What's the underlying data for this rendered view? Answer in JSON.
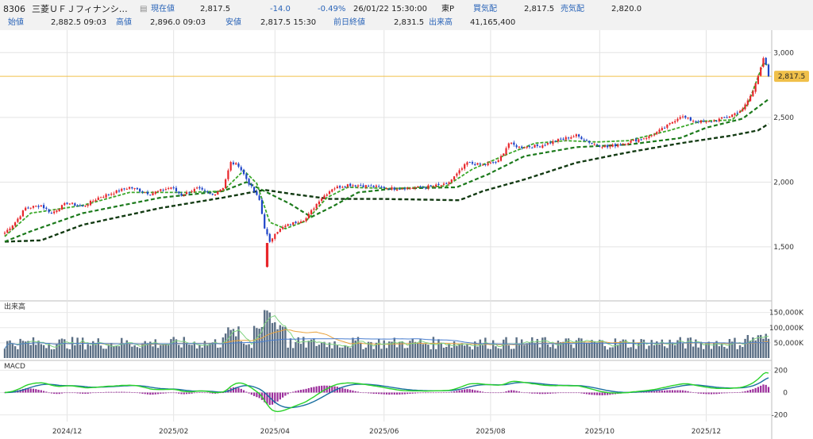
{
  "header": {
    "code": "8306",
    "name": "三菱ＵＦＪフィナンシ…",
    "current_label": "現在値",
    "current_value": "2,817.5",
    "change": "-14.0",
    "change_pct": "-0.49%",
    "datetime": "26/01/22  15:30:00",
    "market": "東P",
    "bid_label": "買気配",
    "bid_value": "2,817.5",
    "ask_label": "売気配",
    "ask_value": "2,820.0",
    "open_label": "始値",
    "open_value": "2,882.5  09:03",
    "high_label": "高値",
    "high_value": "2,896.0  09:03",
    "low_label": "安値",
    "low_value": "2,817.5  15:30",
    "prev_close_label": "前日終値",
    "prev_close_value": "2,831.5",
    "volume_label": "出来高",
    "volume_value": "41,165,400"
  },
  "colors": {
    "up": "#e8262b",
    "down": "#1f45c8",
    "ma_short": "#3aa829",
    "ma_mid": "#1c7a1c",
    "ma_long": "#123a12",
    "volume": "#5a6e84",
    "macd": "#2ad32a",
    "signal": "#1a6fa0",
    "histogram": "#9b2d9b",
    "price_marker": "#f0c04a"
  },
  "chart_data": {
    "type": "candlestick",
    "price_axis": {
      "ticks": [
        "3,000",
        "2,500",
        "2,000",
        "1,500"
      ],
      "ylim": [
        1150,
        3100
      ]
    },
    "last_price_label": "2,817.5",
    "x_axis": {
      "ticks": [
        "2024/12",
        "2025/02",
        "2025/04",
        "2025/06",
        "2025/08",
        "2025/10",
        "2025/12"
      ]
    },
    "price_keyframes": [
      {
        "t": 0,
        "v": 1610
      },
      {
        "t": 4,
        "v": 1690
      },
      {
        "t": 8,
        "v": 1800
      },
      {
        "t": 14,
        "v": 1820
      },
      {
        "t": 18,
        "v": 1760
      },
      {
        "t": 24,
        "v": 1840
      },
      {
        "t": 30,
        "v": 1810
      },
      {
        "t": 36,
        "v": 1880
      },
      {
        "t": 48,
        "v": 1960
      },
      {
        "t": 56,
        "v": 1910
      },
      {
        "t": 64,
        "v": 1960
      },
      {
        "t": 68,
        "v": 1900
      },
      {
        "t": 74,
        "v": 1950
      },
      {
        "t": 80,
        "v": 1900
      },
      {
        "t": 84,
        "v": 1960
      },
      {
        "t": 87,
        "v": 2150
      },
      {
        "t": 90,
        "v": 2130
      },
      {
        "t": 94,
        "v": 1990
      },
      {
        "t": 98,
        "v": 1860
      },
      {
        "t": 100,
        "v": 1650
      },
      {
        "t": 102,
        "v": 1530
      },
      {
        "t": 104,
        "v": 1610
      },
      {
        "t": 108,
        "v": 1660
      },
      {
        "t": 116,
        "v": 1720
      },
      {
        "t": 121,
        "v": 1860
      },
      {
        "t": 126,
        "v": 1950
      },
      {
        "t": 132,
        "v": 1980
      },
      {
        "t": 140,
        "v": 1970
      },
      {
        "t": 150,
        "v": 1950
      },
      {
        "t": 160,
        "v": 1960
      },
      {
        "t": 170,
        "v": 1980
      },
      {
        "t": 174,
        "v": 2060
      },
      {
        "t": 178,
        "v": 2150
      },
      {
        "t": 184,
        "v": 2130
      },
      {
        "t": 190,
        "v": 2160
      },
      {
        "t": 194,
        "v": 2300
      },
      {
        "t": 198,
        "v": 2270
      },
      {
        "t": 206,
        "v": 2280
      },
      {
        "t": 214,
        "v": 2330
      },
      {
        "t": 220,
        "v": 2360
      },
      {
        "t": 226,
        "v": 2300
      },
      {
        "t": 232,
        "v": 2270
      },
      {
        "t": 240,
        "v": 2310
      },
      {
        "t": 248,
        "v": 2350
      },
      {
        "t": 254,
        "v": 2420
      },
      {
        "t": 260,
        "v": 2510
      },
      {
        "t": 264,
        "v": 2480
      },
      {
        "t": 270,
        "v": 2460
      },
      {
        "t": 278,
        "v": 2500
      },
      {
        "t": 284,
        "v": 2560
      },
      {
        "t": 288,
        "v": 2700
      },
      {
        "t": 292,
        "v": 2960
      },
      {
        "t": 294,
        "v": 2840
      }
    ],
    "ma_short_keyframes": [
      {
        "t": 0,
        "v": 1580
      },
      {
        "t": 10,
        "v": 1760
      },
      {
        "t": 30,
        "v": 1820
      },
      {
        "t": 48,
        "v": 1920
      },
      {
        "t": 70,
        "v": 1920
      },
      {
        "t": 84,
        "v": 1930
      },
      {
        "t": 92,
        "v": 2090
      },
      {
        "t": 97,
        "v": 1990
      },
      {
        "t": 102,
        "v": 1690
      },
      {
        "t": 108,
        "v": 1640
      },
      {
        "t": 116,
        "v": 1700
      },
      {
        "t": 124,
        "v": 1880
      },
      {
        "t": 132,
        "v": 1960
      },
      {
        "t": 150,
        "v": 1950
      },
      {
        "t": 170,
        "v": 1970
      },
      {
        "t": 180,
        "v": 2100
      },
      {
        "t": 194,
        "v": 2220
      },
      {
        "t": 204,
        "v": 2300
      },
      {
        "t": 216,
        "v": 2320
      },
      {
        "t": 228,
        "v": 2310
      },
      {
        "t": 240,
        "v": 2320
      },
      {
        "t": 256,
        "v": 2400
      },
      {
        "t": 268,
        "v": 2470
      },
      {
        "t": 280,
        "v": 2480
      },
      {
        "t": 286,
        "v": 2600
      },
      {
        "t": 292,
        "v": 2920
      },
      {
        "t": 294,
        "v": 2900
      }
    ],
    "ma_mid_keyframes": [
      {
        "t": 0,
        "v": 1540
      },
      {
        "t": 10,
        "v": 1620
      },
      {
        "t": 30,
        "v": 1760
      },
      {
        "t": 60,
        "v": 1880
      },
      {
        "t": 84,
        "v": 1930
      },
      {
        "t": 93,
        "v": 2000
      },
      {
        "t": 100,
        "v": 1930
      },
      {
        "t": 110,
        "v": 1830
      },
      {
        "t": 118,
        "v": 1730
      },
      {
        "t": 126,
        "v": 1810
      },
      {
        "t": 136,
        "v": 1920
      },
      {
        "t": 150,
        "v": 1950
      },
      {
        "t": 174,
        "v": 1960
      },
      {
        "t": 186,
        "v": 2060
      },
      {
        "t": 200,
        "v": 2200
      },
      {
        "t": 220,
        "v": 2270
      },
      {
        "t": 240,
        "v": 2290
      },
      {
        "t": 260,
        "v": 2340
      },
      {
        "t": 270,
        "v": 2420
      },
      {
        "t": 284,
        "v": 2490
      },
      {
        "t": 294,
        "v": 2640
      }
    ],
    "ma_long_keyframes": [
      {
        "t": 0,
        "v": 1540
      },
      {
        "t": 14,
        "v": 1550
      },
      {
        "t": 30,
        "v": 1670
      },
      {
        "t": 60,
        "v": 1800
      },
      {
        "t": 84,
        "v": 1880
      },
      {
        "t": 100,
        "v": 1940
      },
      {
        "t": 110,
        "v": 1910
      },
      {
        "t": 125,
        "v": 1870
      },
      {
        "t": 145,
        "v": 1870
      },
      {
        "t": 175,
        "v": 1860
      },
      {
        "t": 184,
        "v": 1930
      },
      {
        "t": 200,
        "v": 2020
      },
      {
        "t": 220,
        "v": 2150
      },
      {
        "t": 240,
        "v": 2230
      },
      {
        "t": 260,
        "v": 2300
      },
      {
        "t": 280,
        "v": 2360
      },
      {
        "t": 290,
        "v": 2400
      },
      {
        "t": 294,
        "v": 2450
      }
    ],
    "volume_panel": {
      "label": "出来高",
      "ticks": [
        "150,000K",
        "100,000K",
        "50,000K"
      ],
      "ylim": [
        0,
        170000
      ]
    },
    "macd_panel": {
      "label": "MACD",
      "ticks": [
        "200",
        "0",
        "-200"
      ],
      "ylim": [
        -260,
        260
      ]
    }
  }
}
